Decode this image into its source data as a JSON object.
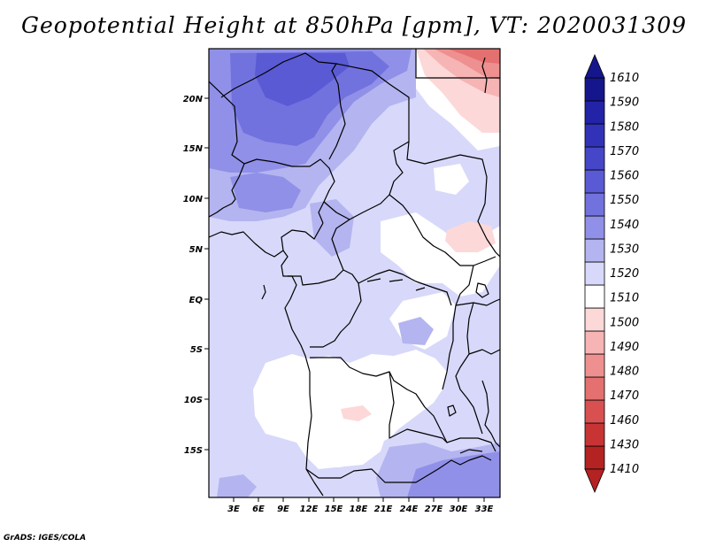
{
  "title": "Geopotential Height at 850hPa [gpm], VT: 2020031309",
  "credit": "GrADS: IGES/COLA",
  "map": {
    "variable": "Geopotential Height",
    "level": "850hPa",
    "units": "gpm",
    "valid_time": "2020031309",
    "region": "Central / West-Central Africa",
    "lon_labels": [
      "3E",
      "6E",
      "9E",
      "12E",
      "15E",
      "18E",
      "21E",
      "24E",
      "27E",
      "30E",
      "33E"
    ],
    "lat_labels": [
      "20N",
      "15N",
      "10N",
      "5N",
      "EQ",
      "5S",
      "10S",
      "15S"
    ]
  },
  "colorbar": {
    "levels": [
      "1610",
      "1590",
      "1580",
      "1570",
      "1560",
      "1550",
      "1540",
      "1530",
      "1520",
      "1510",
      "1500",
      "1490",
      "1480",
      "1470",
      "1460",
      "1430",
      "1410"
    ],
    "colors": [
      "#16168c",
      "#2323a8",
      "#3232b8",
      "#4646c8",
      "#5a5ad4",
      "#7272de",
      "#9090e8",
      "#b4b4f0",
      "#d8d8fa",
      "#ffffff",
      "#fdd8d8",
      "#f6b4b4",
      "#ee9090",
      "#e47070",
      "#d85050",
      "#c83434",
      "#b42222"
    ]
  },
  "chart_data": {
    "type": "heatmap",
    "title": "Geopotential Height at 850hPa [gpm], VT: 2020031309",
    "units": "gpm",
    "x_ticks": [
      "3E",
      "6E",
      "9E",
      "12E",
      "15E",
      "18E",
      "21E",
      "24E",
      "27E",
      "30E",
      "33E"
    ],
    "y_ticks": [
      "20N",
      "15N",
      "10N",
      "5N",
      "EQ",
      "5S",
      "10S",
      "15S"
    ],
    "colorbar_levels": [
      1610,
      1590,
      1580,
      1570,
      1560,
      1550,
      1540,
      1530,
      1520,
      1510,
      1500,
      1490,
      1480,
      1470,
      1460,
      1430,
      1410
    ]
  }
}
